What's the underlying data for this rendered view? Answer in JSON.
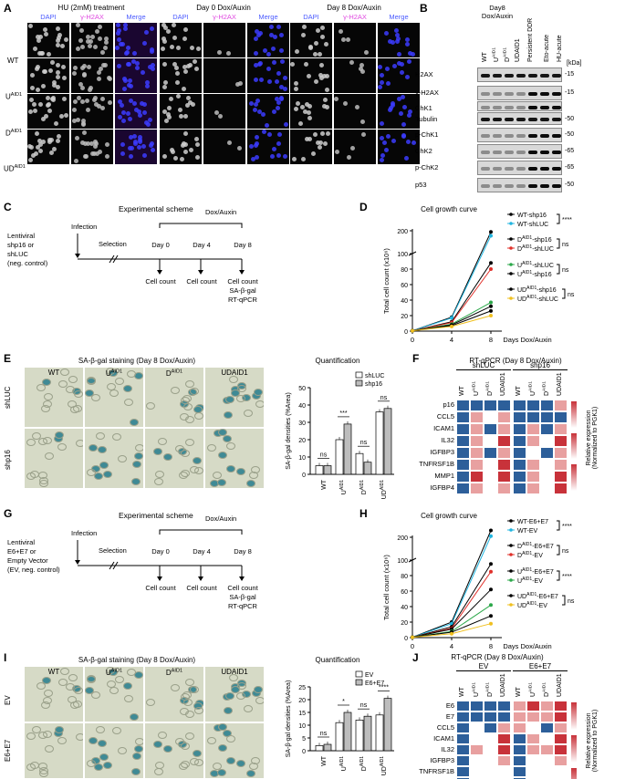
{
  "panelA": {
    "label": "A",
    "groups": [
      "HU (2mM) treatment",
      "Day 0 Dox/Auxin",
      "Day 8 Dox/Auxin"
    ],
    "channels": [
      "DAPI",
      "γ-H2AX",
      "Merge"
    ],
    "rows": [
      "WT",
      "U",
      "D",
      "UD"
    ],
    "sup": "AID1"
  },
  "panelB": {
    "label": "B",
    "header": "Day8\nDox/Auxin",
    "lanes": [
      "WT",
      "UAID1",
      "DAID1",
      "UDAID1",
      "Persistent DDR",
      "Eto-acute",
      "HU-acute"
    ],
    "kda_title": "[kDa]",
    "rows": [
      {
        "name": "H2AX",
        "kda": "15"
      },
      {
        "name": "γ-H2AX",
        "kda": "15"
      },
      {
        "name": "ChK1",
        "kda": ""
      },
      {
        "name": "Tubulin",
        "kda": "50"
      },
      {
        "name": "p-ChK1",
        "kda": "50"
      },
      {
        "name": "ChK2",
        "kda": "65"
      },
      {
        "name": "p-ChK2",
        "kda": "65"
      },
      {
        "name": "p53",
        "kda": "50"
      }
    ]
  },
  "panelC": {
    "label": "C",
    "title": "Experimental scheme",
    "left_text": "Lentiviral\nshp16 or\nshLUC\n(neg. control)",
    "infection": "Infection",
    "selection": "Selection",
    "dox": "Dox/Auxin",
    "days": [
      "Day 0",
      "Day 4",
      "Day 8"
    ],
    "counts": [
      "Cell count",
      "Cell count",
      "Cell count\nSA-β-gal\nRT-qPCR"
    ]
  },
  "panelG": {
    "label": "G",
    "title": "Experimental scheme",
    "left_text": "Lentiviral\nE6+E7 or\nEmpty Vector\n(EV, neg. control)",
    "infection": "Infection",
    "selection": "Selection",
    "dox": "Dox/Auxin",
    "days": [
      "Day 0",
      "Day 4",
      "Day 8"
    ],
    "counts": [
      "Cell count",
      "Cell count",
      "Cell count\nSA-β-gal\nRT-qPCR"
    ]
  },
  "panelE": {
    "label": "E",
    "title": "SA-β-gal staining (Day 8 Dox/Auxin)",
    "cols": [
      "WT",
      "UAID1",
      "DAID1",
      "UDAID1"
    ],
    "rows": [
      "shLUC",
      "shp16"
    ],
    "quant_title": "Quantification",
    "ylabel": "SA-β-gal densities (%Area)",
    "legend": [
      "shLUC",
      "shp16"
    ],
    "sig": [
      "ns",
      "***",
      "ns",
      "ns"
    ]
  },
  "panelI": {
    "label": "I",
    "title": "SA-β-gal staining (Day 8 Dox/Auxin)",
    "cols": [
      "WT",
      "UAID1",
      "DAID1",
      "UDAID1"
    ],
    "rows": [
      "EV",
      "E6+E7"
    ],
    "quant_title": "Quantification",
    "ylabel": "SA-β-gal densities (%Area)",
    "legend": [
      "EV",
      "E6+E7"
    ],
    "sig": [
      "ns",
      "*",
      "ns",
      "****"
    ]
  },
  "panelF": {
    "label": "F",
    "title": "RT-qPCR (Day 8 Dox/Auxin)",
    "groups": [
      "shLUC",
      "shp16"
    ],
    "genes": [
      "p16",
      "CCL5",
      "ICAM1",
      "IL32",
      "IGFBP3",
      "TNFRSF1B",
      "MMP1",
      "IGFBP4"
    ],
    "side": "Relative expression\n(Normalized to PGK1)"
  },
  "panelJ": {
    "label": "J",
    "title": "RT-qPCR (Day 8 Dox/Auxin)",
    "groups": [
      "EV",
      "E6+E7"
    ],
    "genes": [
      "E6",
      "E7",
      "CCL5",
      "ICAM1",
      "IL32",
      "IGFBP3",
      "TNFRSF1B",
      "MMP1",
      "IGFBP4"
    ],
    "side": "Relative expression\n(Normalized to PGK1)"
  },
  "chart_data": [
    {
      "type": "line",
      "panel": "D",
      "title": "Cell growth curve",
      "xlabel": "Days Dox/Auxin",
      "ylabel": "Total cell count (x10⁶)",
      "x": [
        0,
        4,
        8
      ],
      "yticks": [
        0,
        20,
        40,
        60,
        80,
        100,
        200
      ],
      "series": [
        {
          "name": "WT-shp16",
          "color": "#000000",
          "values": [
            0.5,
            18,
            195
          ]
        },
        {
          "name": "WT-shLUC",
          "color": "#21b5e0",
          "values": [
            0.5,
            17,
            178
          ]
        },
        {
          "name": "DAID1-shp16",
          "color": "#000000",
          "values": [
            0.5,
            12,
            88
          ]
        },
        {
          "name": "DAID1-shLUC",
          "color": "#e0302a",
          "values": [
            0.5,
            11,
            80
          ]
        },
        {
          "name": "UAID1-shLUC",
          "color": "#2ca84a",
          "values": [
            0.5,
            9,
            37
          ]
        },
        {
          "name": "UAID1-shp16",
          "color": "#000000",
          "values": [
            0.5,
            8,
            32
          ]
        },
        {
          "name": "UDAID1-shp16",
          "color": "#000000",
          "values": [
            0.5,
            7,
            26
          ]
        },
        {
          "name": "UDAID1-shLUC",
          "color": "#f0c020",
          "values": [
            0.5,
            6,
            20
          ]
        }
      ],
      "sig": [
        "****",
        "ns",
        "ns",
        "ns"
      ]
    },
    {
      "type": "line",
      "panel": "H",
      "title": "Cell growth curve",
      "xlabel": "Days Dox/Auxin",
      "ylabel": "Total cell count (x10⁶)",
      "x": [
        0,
        4,
        8
      ],
      "yticks": [
        0,
        20,
        40,
        60,
        80,
        100,
        200
      ],
      "series": [
        {
          "name": "WT-E6+E7",
          "color": "#000000",
          "values": [
            0.5,
            20,
            230
          ]
        },
        {
          "name": "WT-EV",
          "color": "#21b5e0",
          "values": [
            0.5,
            18,
            205
          ]
        },
        {
          "name": "DAID1-E6+E7",
          "color": "#000000",
          "values": [
            0.5,
            14,
            95
          ]
        },
        {
          "name": "DAID1-EV",
          "color": "#e0302a",
          "values": [
            0.5,
            12,
            85
          ]
        },
        {
          "name": "UAID1-E6+E7",
          "color": "#000000",
          "values": [
            0.5,
            11,
            62
          ]
        },
        {
          "name": "UAID1-EV",
          "color": "#2ca84a",
          "values": [
            0.5,
            8,
            42
          ]
        },
        {
          "name": "UDAID1-E6+E7",
          "color": "#000000",
          "values": [
            0.5,
            7,
            28
          ]
        },
        {
          "name": "UDAID1-EV",
          "color": "#f0c020",
          "values": [
            0.5,
            5,
            18
          ]
        }
      ],
      "sig": [
        "****",
        "ns",
        "****",
        "ns"
      ]
    },
    {
      "type": "bar",
      "panel": "E",
      "categories": [
        "WT",
        "UAID1",
        "DAID1",
        "UDAID1"
      ],
      "ylim": [
        0,
        50
      ],
      "yticks": [
        0,
        10,
        20,
        30,
        40,
        50
      ],
      "series": [
        {
          "name": "shLUC",
          "values": [
            5,
            20,
            12,
            36
          ]
        },
        {
          "name": "shp16",
          "values": [
            5,
            29,
            7,
            38
          ]
        }
      ]
    },
    {
      "type": "bar",
      "panel": "I",
      "categories": [
        "WT",
        "UAID1",
        "DAID1",
        "UDAID1"
      ],
      "ylim": [
        0,
        25
      ],
      "yticks": [
        0,
        5,
        10,
        15,
        20,
        25
      ],
      "series": [
        {
          "name": "EV",
          "values": [
            2,
            11,
            12,
            14
          ]
        },
        {
          "name": "E6+E7",
          "values": [
            2.5,
            15,
            13.5,
            20.5
          ]
        }
      ]
    }
  ]
}
